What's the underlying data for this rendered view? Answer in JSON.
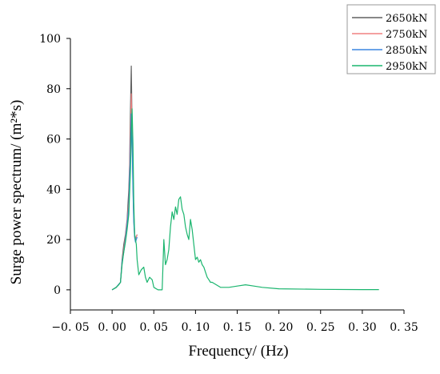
{
  "chart_data": {
    "type": "line",
    "title": "",
    "xlabel": "Frequency/ (Hz)",
    "ylabel": "Surge power spectrum/ (m²*s)",
    "xlim": [
      -0.05,
      0.35
    ],
    "ylim": [
      -8,
      100
    ],
    "grid": false,
    "legend_position": "top-right",
    "x_ticks": [
      -0.05,
      0.0,
      0.05,
      0.1,
      0.15,
      0.2,
      0.25,
      0.3,
      0.35
    ],
    "x_tick_labels": [
      "−0. 05",
      "0. 00",
      "0. 05",
      "0. 10",
      "0. 15",
      "0. 20",
      "0. 25",
      "0. 30",
      "0. 35"
    ],
    "y_ticks": [
      0,
      20,
      40,
      60,
      80,
      100
    ],
    "y_tick_labels": [
      "0",
      "20",
      "40",
      "60",
      "80",
      "100"
    ],
    "series": [
      {
        "name": "2650kN",
        "color": "#606060",
        "x": [
          0.0,
          0.005,
          0.01,
          0.012,
          0.014,
          0.016,
          0.018,
          0.02,
          0.021,
          0.022,
          0.023,
          0.024,
          0.025,
          0.026,
          0.027,
          0.028,
          0.03
        ],
        "y": [
          0,
          1,
          3,
          12,
          18,
          22,
          28,
          40,
          50,
          72,
          89,
          65,
          45,
          30,
          22,
          20,
          22
        ]
      },
      {
        "name": "2750kN",
        "color": "#f08080",
        "x": [
          0.0,
          0.005,
          0.01,
          0.012,
          0.014,
          0.016,
          0.018,
          0.02,
          0.021,
          0.022,
          0.023,
          0.024,
          0.025,
          0.026,
          0.027,
          0.028,
          0.03
        ],
        "y": [
          0,
          1,
          3,
          11,
          16,
          21,
          27,
          35,
          48,
          60,
          78,
          62,
          42,
          28,
          21,
          20,
          22
        ]
      },
      {
        "name": "2850kN",
        "color": "#3a86e0",
        "x": [
          0.0,
          0.005,
          0.01,
          0.012,
          0.014,
          0.016,
          0.018,
          0.02,
          0.021,
          0.022,
          0.023,
          0.024,
          0.025,
          0.026,
          0.027,
          0.028,
          0.03
        ],
        "y": [
          0,
          1,
          3,
          11,
          15,
          20,
          26,
          33,
          45,
          55,
          70,
          58,
          40,
          27,
          21,
          19,
          21
        ]
      },
      {
        "name": "2950kN",
        "color": "#1ab56e",
        "x": [
          0.0,
          0.005,
          0.008,
          0.01,
          0.012,
          0.014,
          0.016,
          0.018,
          0.02,
          0.022,
          0.023,
          0.024,
          0.025,
          0.026,
          0.027,
          0.028,
          0.029,
          0.03,
          0.032,
          0.035,
          0.038,
          0.04,
          0.042,
          0.045,
          0.048,
          0.05,
          0.055,
          0.06,
          0.062,
          0.064,
          0.066,
          0.068,
          0.07,
          0.072,
          0.074,
          0.076,
          0.078,
          0.08,
          0.082,
          0.084,
          0.086,
          0.088,
          0.09,
          0.092,
          0.094,
          0.096,
          0.098,
          0.1,
          0.102,
          0.104,
          0.106,
          0.108,
          0.11,
          0.112,
          0.114,
          0.116,
          0.118,
          0.12,
          0.125,
          0.13,
          0.14,
          0.15,
          0.16,
          0.17,
          0.18,
          0.2,
          0.25,
          0.3,
          0.32
        ],
        "y": [
          0,
          1,
          2,
          3,
          10,
          15,
          19,
          24,
          30,
          48,
          62,
          72,
          58,
          35,
          22,
          20,
          18,
          12,
          6,
          8,
          9,
          5,
          3,
          5,
          4,
          1,
          0,
          0,
          20,
          10,
          12,
          16,
          25,
          31,
          28,
          33,
          30,
          36,
          37,
          32,
          30,
          25,
          22,
          20,
          28,
          24,
          18,
          12,
          13,
          11,
          12,
          10,
          9,
          7,
          5,
          4,
          3,
          3,
          2,
          1,
          1,
          1.5,
          2,
          1.5,
          1,
          0.4,
          0.2,
          0.1,
          0.1
        ]
      }
    ]
  }
}
